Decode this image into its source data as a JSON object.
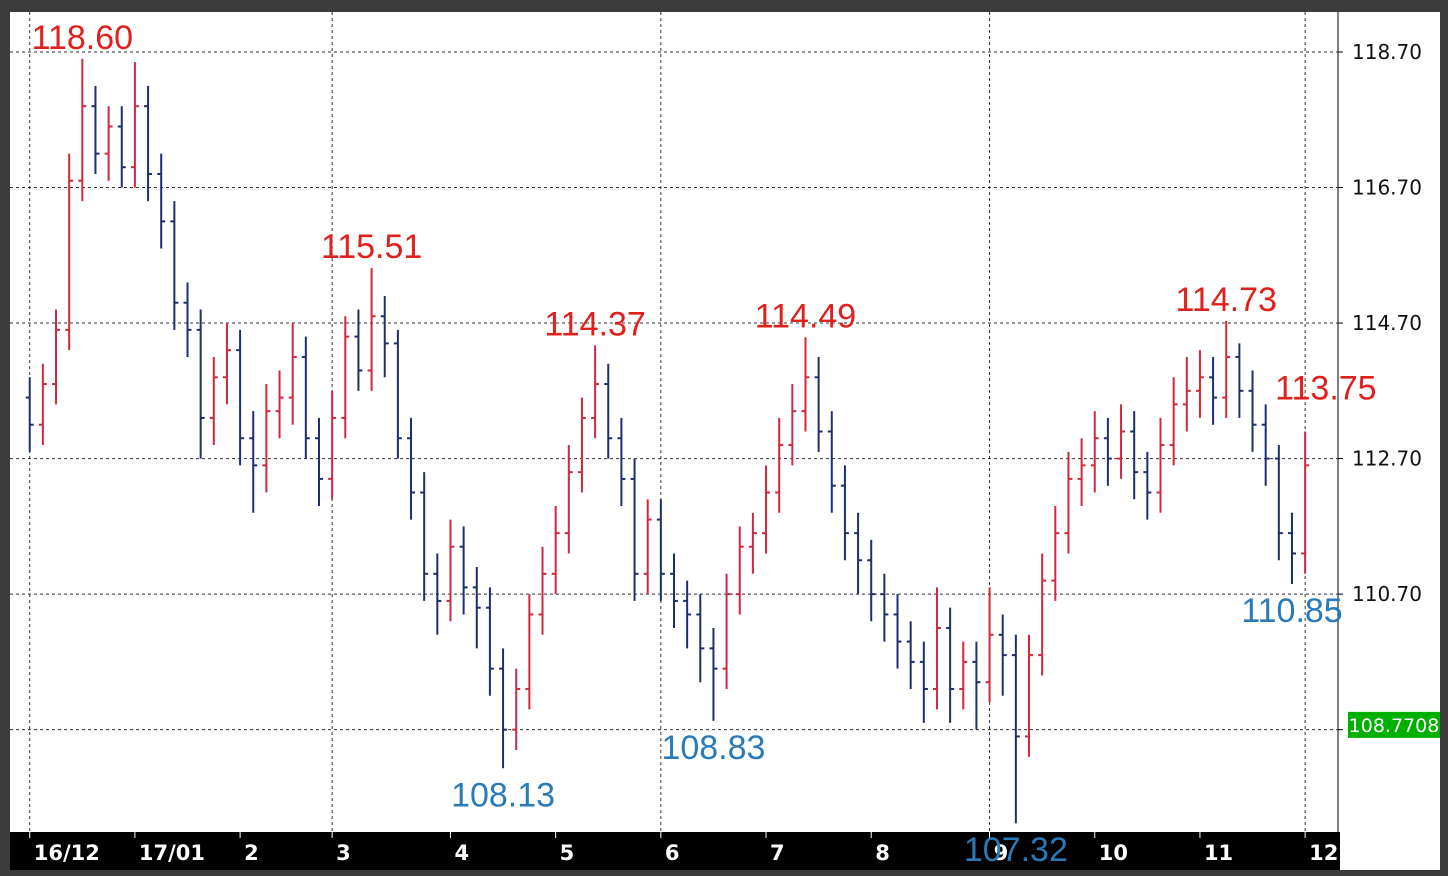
{
  "chart_data": {
    "type": "ohlc",
    "up_color": "#d2283c",
    "down_color": "#1c2f6e",
    "open": [
      113.6,
      113.2,
      113.8,
      114.6,
      116.8,
      117.9,
      117.2,
      117.6,
      117.0,
      117.9,
      116.9,
      116.2,
      115.0,
      114.6,
      113.3,
      113.9,
      114.3,
      113.0,
      112.6,
      113.4,
      113.6,
      114.2,
      113.0,
      112.4,
      113.3,
      114.5,
      114.0,
      114.8,
      114.4,
      113.0,
      112.2,
      111.0,
      110.6,
      111.4,
      110.8,
      110.5,
      109.6,
      108.7,
      109.3,
      110.4,
      111.0,
      111.6,
      112.5,
      113.3,
      113.8,
      113.0,
      112.4,
      111.0,
      111.8,
      111.0,
      110.6,
      110.4,
      109.9,
      109.6,
      110.7,
      111.4,
      111.6,
      112.2,
      112.9,
      113.4,
      113.9,
      113.1,
      112.3,
      111.6,
      111.2,
      110.7,
      110.4,
      110.0,
      109.7,
      109.3,
      110.2,
      109.3,
      109.7,
      109.4,
      110.1,
      109.8,
      108.6,
      109.8,
      110.9,
      111.6,
      112.4,
      112.6,
      113.0,
      112.7,
      113.1,
      112.5,
      112.2,
      112.9,
      113.5,
      113.7,
      113.9,
      113.6,
      114.2,
      113.7,
      113.2,
      112.7,
      111.6,
      111.3
    ],
    "high": [
      113.9,
      114.1,
      114.9,
      117.2,
      118.6,
      118.2,
      117.9,
      117.9,
      118.55,
      118.2,
      117.2,
      116.5,
      115.3,
      114.9,
      114.2,
      114.7,
      114.6,
      113.4,
      113.8,
      114.0,
      114.7,
      114.5,
      113.3,
      113.7,
      114.8,
      114.9,
      115.51,
      115.1,
      114.6,
      113.3,
      112.5,
      111.3,
      111.8,
      111.7,
      111.1,
      110.8,
      109.9,
      109.6,
      110.7,
      111.4,
      112.0,
      112.9,
      113.6,
      114.37,
      114.1,
      113.3,
      112.7,
      112.1,
      112.1,
      111.3,
      110.9,
      110.7,
      110.2,
      111.0,
      111.7,
      111.9,
      112.6,
      113.3,
      113.8,
      114.49,
      114.2,
      113.4,
      112.6,
      111.9,
      111.5,
      111.0,
      110.7,
      110.3,
      110.0,
      110.8,
      110.5,
      110.0,
      110.0,
      110.8,
      110.4,
      110.1,
      110.1,
      111.3,
      112.0,
      112.8,
      113.0,
      113.4,
      113.3,
      113.5,
      113.4,
      112.8,
      113.3,
      113.9,
      114.2,
      114.3,
      114.2,
      114.73,
      114.4,
      114.0,
      113.5,
      112.9,
      111.9,
      113.1
    ],
    "low": [
      112.8,
      112.9,
      113.5,
      114.3,
      116.5,
      116.9,
      116.8,
      116.7,
      116.7,
      116.5,
      115.8,
      114.6,
      114.2,
      112.7,
      112.9,
      113.5,
      112.6,
      111.9,
      112.2,
      113.0,
      113.2,
      112.7,
      112.0,
      112.1,
      113.0,
      113.7,
      113.7,
      113.9,
      112.7,
      111.8,
      110.6,
      110.1,
      110.3,
      110.4,
      109.9,
      109.2,
      108.13,
      108.4,
      109.0,
      110.1,
      110.7,
      111.3,
      112.2,
      113.0,
      112.7,
      112.0,
      110.6,
      110.7,
      110.6,
      110.2,
      109.9,
      109.4,
      108.83,
      109.3,
      110.4,
      111.0,
      111.3,
      111.9,
      112.6,
      113.1,
      112.8,
      111.9,
      111.2,
      110.7,
      110.3,
      110.0,
      109.6,
      109.3,
      108.8,
      109.0,
      108.8,
      109.0,
      108.7,
      109.1,
      109.2,
      107.32,
      108.3,
      109.5,
      110.6,
      111.3,
      112.0,
      112.2,
      112.3,
      112.4,
      112.1,
      111.8,
      111.9,
      112.6,
      113.1,
      113.3,
      113.2,
      113.3,
      113.3,
      112.8,
      112.3,
      111.2,
      110.85,
      111.0
    ],
    "close": [
      113.2,
      113.8,
      114.6,
      116.8,
      117.9,
      117.2,
      117.6,
      117.0,
      117.9,
      116.9,
      116.2,
      115.0,
      114.6,
      113.3,
      113.9,
      114.3,
      113.0,
      112.6,
      113.4,
      113.6,
      114.2,
      113.0,
      112.4,
      113.3,
      114.5,
      114.0,
      114.8,
      114.4,
      113.0,
      112.2,
      111.0,
      110.6,
      111.4,
      110.8,
      110.5,
      109.6,
      108.7,
      109.3,
      110.4,
      111.0,
      111.6,
      112.5,
      113.3,
      113.8,
      113.0,
      112.4,
      111.0,
      111.8,
      111.0,
      110.6,
      110.4,
      109.9,
      109.6,
      110.7,
      111.4,
      111.6,
      112.2,
      112.9,
      113.4,
      113.9,
      113.1,
      112.3,
      111.6,
      111.2,
      110.7,
      110.4,
      110.0,
      109.7,
      109.3,
      110.2,
      109.3,
      109.7,
      109.4,
      110.1,
      109.8,
      108.6,
      109.8,
      110.9,
      111.6,
      112.4,
      112.6,
      113.0,
      112.7,
      113.1,
      112.5,
      112.2,
      112.9,
      113.5,
      113.7,
      113.9,
      113.6,
      114.2,
      113.7,
      113.2,
      112.7,
      111.6,
      111.3,
      112.6
    ],
    "xlim": [
      -1.5,
      99.5
    ],
    "xticks": [
      {
        "value": 0,
        "label": "16/12"
      },
      {
        "value": 8,
        "label": "17/01"
      },
      {
        "value": 16,
        "label": "2"
      },
      {
        "value": 23,
        "label": "3"
      },
      {
        "value": 32,
        "label": "4"
      },
      {
        "value": 40,
        "label": "5"
      },
      {
        "value": 48,
        "label": "6"
      },
      {
        "value": 56,
        "label": "7"
      },
      {
        "value": 64,
        "label": "8"
      },
      {
        "value": 73,
        "label": "9"
      },
      {
        "value": 81,
        "label": "10"
      },
      {
        "value": 89,
        "label": "11"
      },
      {
        "value": 97,
        "label": "12"
      }
    ],
    "xgrid_step": 3,
    "ylim": [
      107.19,
      119.29
    ],
    "yticks": [
      {
        "value": 108.7,
        "label": null
      },
      {
        "value": 110.7,
        "label": "110.70"
      },
      {
        "value": 112.7,
        "label": "112.70"
      },
      {
        "value": 114.7,
        "label": "114.70"
      },
      {
        "value": 116.7,
        "label": "116.70"
      },
      {
        "value": 118.7,
        "label": "118.70"
      }
    ],
    "current_price": 108.7708,
    "current_price_color": "#00b000",
    "annotations": [
      {
        "label": "118.60",
        "value": 118.6,
        "x": 4,
        "side": "above",
        "color": "#e0201c"
      },
      {
        "label": "115.51",
        "value": 115.51,
        "x": 26,
        "side": "above",
        "color": "#e0201c"
      },
      {
        "label": "114.37",
        "value": 114.37,
        "x": 43,
        "side": "above",
        "color": "#e0201c"
      },
      {
        "label": "114.49",
        "value": 114.49,
        "x": 59,
        "side": "above",
        "color": "#e0201c"
      },
      {
        "label": "114.73",
        "value": 114.73,
        "x": 91,
        "side": "above",
        "color": "#e0201c"
      },
      {
        "label": "113.75",
        "value": 113.75,
        "x": 97,
        "side": "right",
        "color": "#e0201c"
      },
      {
        "label": "108.13",
        "value": 108.13,
        "x": 36,
        "side": "below",
        "color": "#2a7ab8"
      },
      {
        "label": "108.83",
        "value": 108.83,
        "x": 52,
        "side": "below",
        "color": "#2a7ab8"
      },
      {
        "label": "107.32",
        "value": 107.32,
        "x": 75,
        "side": "below",
        "color": "#2a7ab8"
      },
      {
        "label": "110.85",
        "value": 110.85,
        "x": 96,
        "side": "below",
        "color": "#2a7ab8"
      }
    ]
  }
}
